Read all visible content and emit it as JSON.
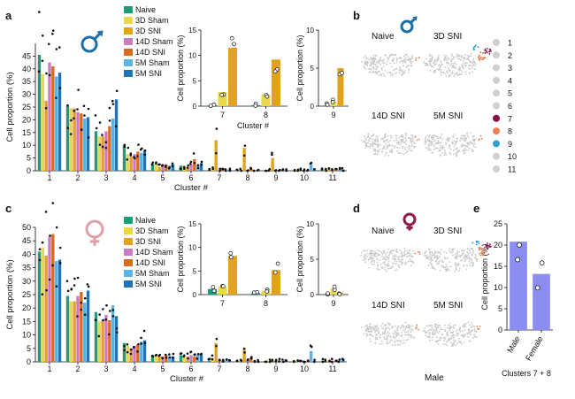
{
  "palette": {
    "naive": "#1a9e77",
    "sham3d": "#e8d84a",
    "sni3d": "#e2a21c",
    "sham14d": "#c77dc0",
    "sni14d": "#d86b1e",
    "sham5m": "#5ab4e5",
    "sni5m": "#1f73b7",
    "male_bar": "#8b8ef0",
    "female_bar": "#f2b5b2",
    "umap_gray": "#c9c9c9",
    "c7": "#8a0d47",
    "c8": "#f07c50",
    "c9": "#2f9fd8"
  },
  "icons": {
    "male": "male-symbol-icon",
    "female": "female-symbol-icon"
  },
  "panel_labels": {
    "a": "a",
    "b": "b",
    "c": "c",
    "d": "d",
    "e": "e"
  },
  "legend": {
    "entries": [
      "Naive",
      "3D Sham",
      "3D SNI",
      "14D Sham",
      "14D SNI",
      "5M Sham",
      "5M SNI"
    ]
  },
  "umap_b": {
    "labels": [
      "Naive",
      "3D SNI",
      "14D SNI",
      "5M SNI"
    ]
  },
  "umap_d": {
    "labels": [
      "Naive",
      "3D SNI",
      "14D SNI",
      "5M SNI"
    ],
    "bottom_label": "Male"
  },
  "cluster_legend": [
    "1",
    "2",
    "3",
    "4",
    "5",
    "6",
    "7",
    "8",
    "9",
    "10",
    "11"
  ],
  "chart_data": [
    {
      "id": "a-main",
      "type": "bar",
      "categories": [
        "1",
        "2",
        "3",
        "4",
        "5",
        "6",
        "7",
        "8",
        "9",
        "10",
        "11"
      ],
      "xlabel": "Cluster #",
      "ylabel": "Cell proportion (%)",
      "ylim": [
        0,
        50
      ],
      "yticks": [
        0,
        5,
        10,
        15,
        20,
        25,
        30,
        35,
        40,
        45
      ],
      "series": [
        {
          "name": "Naive",
          "values": [
            45.5,
            25.5,
            15.5,
            10,
            2.5,
            2,
            0.3,
            0.3,
            0.2,
            0.2,
            0.5
          ]
        },
        {
          "name": "3D Sham",
          "values": [
            38,
            24.5,
            13.5,
            6.5,
            2.5,
            2,
            1,
            0.5,
            0.5,
            0.3,
            0.5
          ]
        },
        {
          "name": "3D SNI",
          "values": [
            27.5,
            24.5,
            13.5,
            5.5,
            1.5,
            1.5,
            12,
            9,
            5,
            0.3,
            0.5
          ]
        },
        {
          "name": "14D Sham",
          "values": [
            42.5,
            23,
            15.5,
            6.5,
            2.5,
            2.5,
            0.3,
            0.3,
            0.2,
            0.2,
            0.5
          ]
        },
        {
          "name": "14D SNI",
          "values": [
            41,
            22.5,
            17.5,
            7.5,
            2.5,
            4.5,
            0.5,
            0.8,
            0.5,
            0.3,
            0.8
          ]
        },
        {
          "name": "5M Sham",
          "values": [
            37,
            20.5,
            20.5,
            7,
            2,
            2,
            0.3,
            0.3,
            0.3,
            2.5,
            0.5
          ]
        },
        {
          "name": "5M SNI",
          "values": [
            38.5,
            21,
            28,
            8,
            2.5,
            3,
            0.5,
            0.3,
            0.3,
            0.3,
            0.5
          ]
        }
      ]
    },
    {
      "id": "a-inset78",
      "type": "bar",
      "categories": [
        "7",
        "8"
      ],
      "xlabel": "Cluster #",
      "ylabel": "Cell proportion (%)",
      "ylim": [
        0,
        15
      ],
      "yticks": [
        0,
        5,
        10,
        15
      ],
      "series": [
        {
          "name": "Naive",
          "values": [
            0.2,
            0.2
          ]
        },
        {
          "name": "3D Sham",
          "values": [
            2.8,
            2.3
          ]
        },
        {
          "name": "3D SNI",
          "values": [
            11.5,
            9.2
          ]
        }
      ]
    },
    {
      "id": "a-inset9",
      "type": "bar",
      "categories": [
        "9"
      ],
      "xlabel": "",
      "ylabel": "Cell proportion (%)",
      "ylim": [
        0,
        10
      ],
      "yticks": [
        0,
        5,
        10
      ],
      "series": [
        {
          "name": "Naive",
          "values": [
            0.1
          ]
        },
        {
          "name": "3D Sham",
          "values": [
            0.6
          ]
        },
        {
          "name": "3D SNI",
          "values": [
            5.0
          ]
        }
      ]
    },
    {
      "id": "c-main",
      "type": "bar",
      "categories": [
        "1",
        "2",
        "3",
        "4",
        "5",
        "6",
        "7",
        "8",
        "9",
        "10",
        "11"
      ],
      "xlabel": "Cluster #",
      "ylabel": "Cell proportion (%)",
      "ylim": [
        0,
        50
      ],
      "yticks": [
        0,
        5,
        10,
        15,
        20,
        25,
        30,
        35,
        40,
        45,
        50
      ],
      "series": [
        {
          "name": "Naive",
          "values": [
            41,
            24.5,
            18.5,
            7,
            2.5,
            2.5,
            0.5,
            0.3,
            0.2,
            0.3,
            0.5
          ]
        },
        {
          "name": "3D Sham",
          "values": [
            42.5,
            22.5,
            15,
            6,
            2,
            2,
            1.5,
            0.5,
            0.3,
            0.3,
            0.5
          ]
        },
        {
          "name": "3D SNI",
          "values": [
            39.5,
            22.5,
            15.5,
            5,
            2,
            2,
            7,
            4.5,
            0.5,
            0.3,
            0.5
          ]
        },
        {
          "name": "14D Sham",
          "values": [
            46.5,
            24.5,
            17.5,
            6,
            2,
            2.5,
            0.5,
            0.5,
            0.3,
            0.3,
            0.5
          ]
        },
        {
          "name": "14D SNI",
          "values": [
            47.5,
            26,
            15.5,
            6.5,
            2.5,
            2,
            0.5,
            1.5,
            0.5,
            0.3,
            0.5
          ]
        },
        {
          "name": "5M Sham",
          "values": [
            37.5,
            22,
            21,
            7.5,
            2,
            2.5,
            0.5,
            0.3,
            0.3,
            4,
            0.5
          ]
        },
        {
          "name": "5M SNI",
          "values": [
            38,
            26.5,
            17,
            8,
            2,
            2.5,
            0.5,
            0.3,
            0.3,
            0.3,
            0.5
          ]
        }
      ]
    },
    {
      "id": "c-inset78",
      "type": "bar",
      "categories": [
        "7",
        "8"
      ],
      "xlabel": "",
      "ylabel": "Cell proportion (%)",
      "ylim": [
        0,
        15
      ],
      "yticks": [
        0,
        5,
        10,
        15
      ],
      "series": [
        {
          "name": "Naive",
          "values": [
            1.2,
            0.3
          ]
        },
        {
          "name": "3D Sham",
          "values": [
            1.7,
            0.8
          ]
        },
        {
          "name": "3D SNI",
          "values": [
            8.2,
            5.2
          ]
        }
      ]
    },
    {
      "id": "c-inset9",
      "type": "bar",
      "categories": [
        "9"
      ],
      "xlabel": "",
      "ylabel": "Cell proportion (%)",
      "ylim": [
        0,
        10
      ],
      "yticks": [
        0,
        5,
        10
      ],
      "series": [
        {
          "name": "Naive",
          "values": [
            0.1
          ]
        },
        {
          "name": "3D Sham",
          "values": [
            0.9
          ]
        },
        {
          "name": "3D SNI",
          "values": [
            0.3
          ]
        }
      ]
    },
    {
      "id": "e",
      "type": "bar",
      "categories": [
        "Male",
        "Female"
      ],
      "xlabel": "Clusters 7 + 8",
      "ylabel": "Cell proportion (%)",
      "ylim": [
        0,
        25
      ],
      "yticks": [
        0,
        5,
        10,
        15,
        20,
        25
      ],
      "series": [
        {
          "name": "",
          "values": [
            20.8,
            13.2
          ]
        }
      ]
    }
  ]
}
